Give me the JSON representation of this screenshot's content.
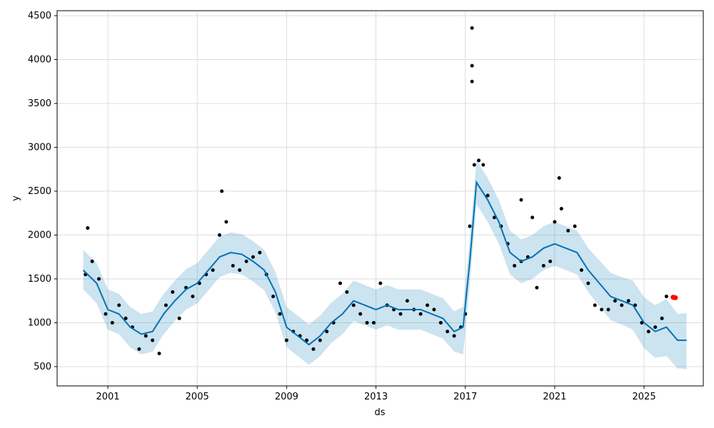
{
  "chart_data": {
    "type": "forecast",
    "xlabel": "ds",
    "ylabel": "y",
    "xlim": [
      1998.73,
      2027.65
    ],
    "ylim": [
      280,
      4557
    ],
    "xticks": [
      2001,
      2005,
      2009,
      2013,
      2017,
      2021,
      2025
    ],
    "yticks": [
      500,
      1000,
      1500,
      2000,
      2500,
      3000,
      3500,
      4000,
      4500
    ],
    "grid": true,
    "observed": {
      "color": "#000000",
      "x": [
        2000.0,
        2000.1,
        2000.3,
        2000.6,
        2000.9,
        2001.2,
        2001.5,
        2001.8,
        2002.1,
        2002.4,
        2002.7,
        2003.0,
        2003.3,
        2003.6,
        2003.9,
        2004.2,
        2004.5,
        2004.8,
        2005.1,
        2005.4,
        2005.7,
        2006.0,
        2006.1,
        2006.3,
        2006.6,
        2006.9,
        2007.2,
        2007.5,
        2007.8,
        2008.1,
        2008.4,
        2008.7,
        2009.0,
        2009.3,
        2009.6,
        2009.9,
        2010.2,
        2010.5,
        2010.8,
        2011.1,
        2011.4,
        2011.7,
        2012.0,
        2012.3,
        2012.6,
        2012.9,
        2013.2,
        2013.5,
        2013.8,
        2014.1,
        2014.4,
        2014.7,
        2015.0,
        2015.3,
        2015.6,
        2015.9,
        2016.2,
        2016.5,
        2016.8,
        2017.0,
        2017.2,
        2017.3,
        2017.3,
        2017.3,
        2017.4,
        2017.6,
        2017.8,
        2018.0,
        2018.3,
        2018.6,
        2018.9,
        2019.2,
        2019.5,
        2019.5,
        2019.8,
        2020.0,
        2020.2,
        2020.5,
        2020.8,
        2021.0,
        2021.2,
        2021.3,
        2021.6,
        2021.9,
        2022.2,
        2022.5,
        2022.8,
        2023.1,
        2023.4,
        2023.7,
        2024.0,
        2024.3,
        2024.6,
        2024.9,
        2025.2,
        2025.5,
        2025.8,
        2026.0
      ],
      "values": [
        1550,
        2080,
        1700,
        1500,
        1100,
        1000,
        1200,
        1050,
        950,
        700,
        850,
        800,
        650,
        1200,
        1350,
        1050,
        1400,
        1300,
        1450,
        1550,
        1600,
        2000,
        2500,
        2150,
        1650,
        1600,
        1700,
        1750,
        1800,
        1550,
        1300,
        1100,
        800,
        900,
        850,
        800,
        700,
        800,
        900,
        1000,
        1450,
        1350,
        1200,
        1100,
        1000,
        1000,
        1450,
        1200,
        1150,
        1100,
        1250,
        1150,
        1100,
        1200,
        1150,
        1000,
        900,
        850,
        950,
        1100,
        2100,
        4360,
        3930,
        3750,
        2800,
        2850,
        2800,
        2450,
        2200,
        2100,
        1900,
        1650,
        1700,
        2400,
        1750,
        2200,
        1400,
        1650,
        1700,
        2150,
        2650,
        2300,
        2050,
        2100,
        1600,
        1450,
        1200,
        1150,
        1150,
        1250,
        1200,
        1250,
        1200,
        1000,
        900,
        950,
        1050,
        1300
      ]
    },
    "future": {
      "color": "#ff0000",
      "x": [
        2026.3,
        2026.4
      ],
      "values": [
        1290,
        1285
      ]
    },
    "forecast": {
      "color": "#0072b2",
      "x": [
        1999.9,
        2000.5,
        2001.0,
        2001.5,
        2002.0,
        2002.5,
        2003.0,
        2003.5,
        2004.0,
        2004.5,
        2005.0,
        2005.5,
        2006.0,
        2006.5,
        2007.0,
        2007.5,
        2008.0,
        2008.5,
        2009.0,
        2009.5,
        2010.0,
        2010.5,
        2011.0,
        2011.5,
        2012.0,
        2012.5,
        2013.0,
        2013.5,
        2014.0,
        2014.5,
        2015.0,
        2015.5,
        2016.0,
        2016.5,
        2016.9,
        2017.2,
        2017.5,
        2018.0,
        2018.5,
        2019.0,
        2019.5,
        2020.0,
        2020.5,
        2021.0,
        2021.5,
        2022.0,
        2022.5,
        2023.0,
        2023.5,
        2024.0,
        2024.5,
        2025.0,
        2025.5,
        2026.0,
        2026.5,
        2026.9
      ],
      "values": [
        1600,
        1450,
        1150,
        1100,
        950,
        870,
        900,
        1100,
        1250,
        1380,
        1450,
        1600,
        1750,
        1800,
        1780,
        1700,
        1600,
        1350,
        950,
        850,
        750,
        850,
        1000,
        1100,
        1250,
        1200,
        1150,
        1200,
        1150,
        1150,
        1150,
        1100,
        1050,
        900,
        950,
        1700,
        2600,
        2400,
        2150,
        1800,
        1700,
        1750,
        1850,
        1900,
        1850,
        1800,
        1600,
        1450,
        1300,
        1250,
        1200,
        1000,
        900,
        950,
        800,
        800
      ],
      "lower": [
        1380,
        1220,
        920,
        870,
        720,
        640,
        670,
        870,
        1020,
        1150,
        1220,
        1370,
        1520,
        1570,
        1550,
        1470,
        1370,
        1120,
        720,
        620,
        520,
        620,
        770,
        870,
        1020,
        970,
        920,
        970,
        920,
        920,
        920,
        870,
        820,
        670,
        640,
        1440,
        2350,
        2150,
        1900,
        1550,
        1450,
        1500,
        1600,
        1650,
        1600,
        1550,
        1350,
        1190,
        1030,
        980,
        920,
        710,
        600,
        620,
        480,
        470
      ],
      "upper": [
        1830,
        1680,
        1380,
        1330,
        1180,
        1100,
        1130,
        1330,
        1480,
        1610,
        1680,
        1830,
        1980,
        2030,
        2010,
        1930,
        1830,
        1580,
        1180,
        1080,
        980,
        1080,
        1230,
        1330,
        1480,
        1430,
        1380,
        1430,
        1380,
        1380,
        1380,
        1330,
        1280,
        1130,
        1180,
        1960,
        2850,
        2650,
        2400,
        2050,
        1950,
        2000,
        2100,
        2150,
        2100,
        2050,
        1850,
        1710,
        1570,
        1520,
        1480,
        1290,
        1200,
        1270,
        1100,
        1110
      ]
    }
  }
}
